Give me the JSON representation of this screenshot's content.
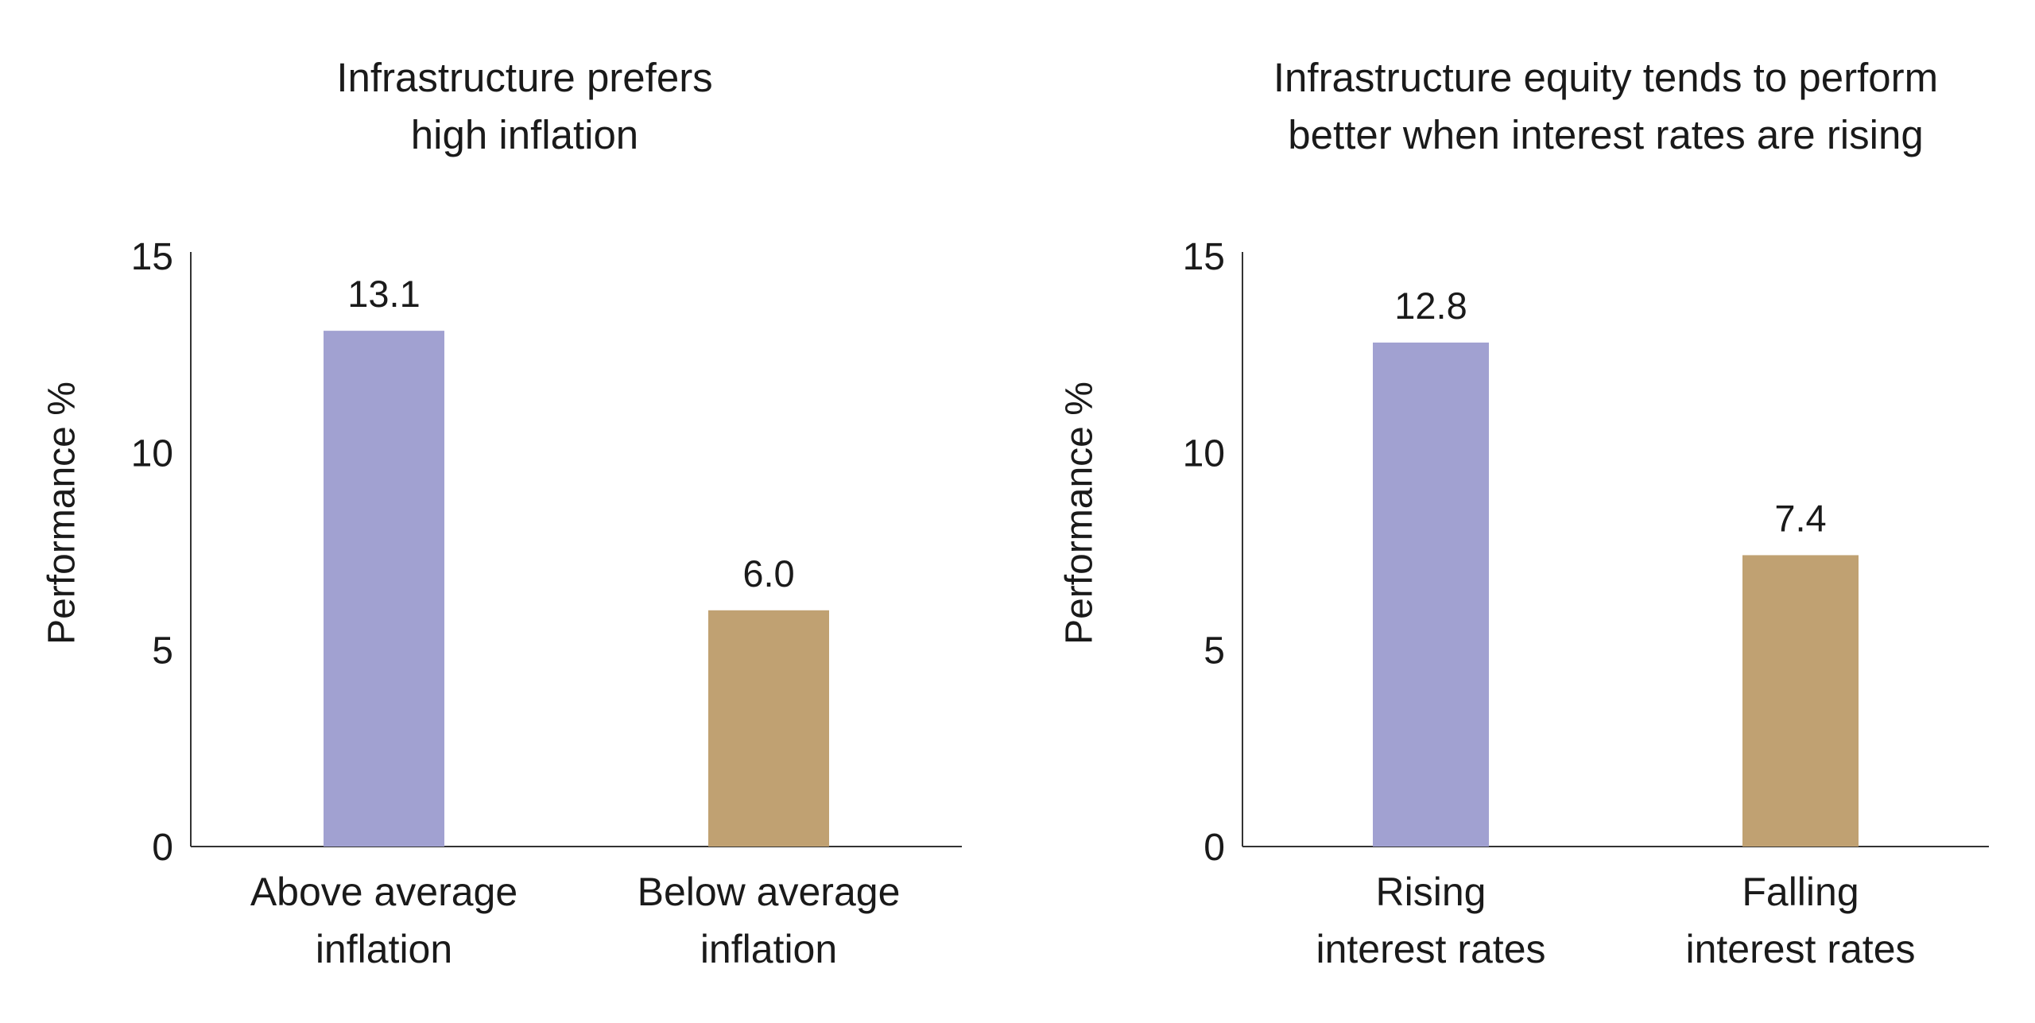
{
  "chart_data": [
    {
      "type": "bar",
      "title": "Infrastructure prefers\nhigh inflation",
      "ylabel": "Performance %",
      "xlabel": "",
      "ylim": [
        0,
        15
      ],
      "yticks": [
        "0",
        "5",
        "10",
        "15"
      ],
      "grid": false,
      "categories": [
        "Above average\ninflation",
        "Below average\ninflation"
      ],
      "values": [
        13.1,
        6.0
      ],
      "value_labels": [
        "13.1",
        "6.0"
      ],
      "colors": [
        "#a1a1d1",
        "#c0a172"
      ]
    },
    {
      "type": "bar",
      "title": "Infrastructure equity tends to perform\nbetter when interest rates are rising",
      "ylabel": "Performance %",
      "xlabel": "",
      "ylim": [
        0,
        15
      ],
      "yticks": [
        "0",
        "5",
        "10",
        "15"
      ],
      "grid": false,
      "categories": [
        "Rising\ninterest rates",
        "Falling\ninterest rates"
      ],
      "values": [
        12.8,
        7.4
      ],
      "value_labels": [
        "12.8",
        "7.4"
      ],
      "colors": [
        "#a1a1d1",
        "#c0a172"
      ]
    }
  ]
}
